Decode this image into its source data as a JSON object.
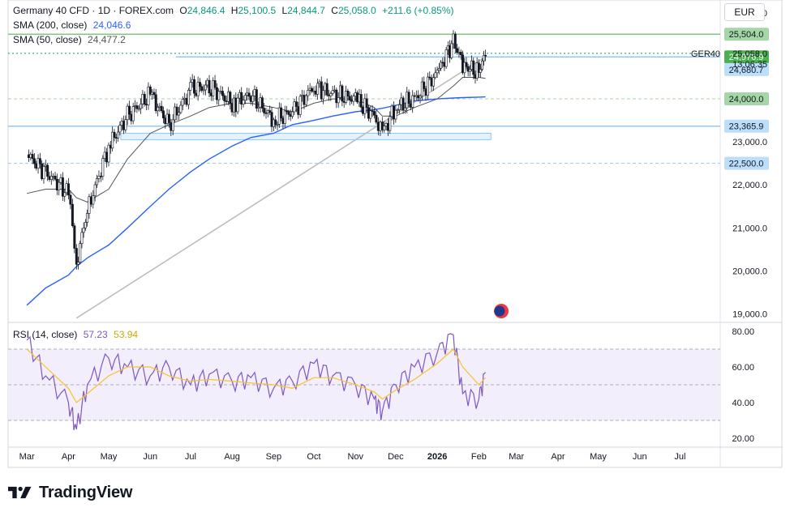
{
  "header": {
    "symbol": "Germany 40 CFD · 1D · FOREX.com",
    "open_label": "O",
    "open": "24,846.4",
    "high_label": "H",
    "high": "25,100.5",
    "low_label": "L",
    "low": "24,844.7",
    "close_label": "C",
    "close": "25,058.0",
    "change": "+211.6 (+0.85%)",
    "sma200_label": "SMA (200, close)",
    "sma200_value": "24,046.6",
    "sma50_label": "SMA (50, close)",
    "sma50_value": "24,477.2",
    "currency": "EUR",
    "up_color": "#089981",
    "down_color": "#f23645"
  },
  "price_axis": {
    "ticks": [
      {
        "value": 26000,
        "label": "26,000.0"
      },
      {
        "value": 23000,
        "label": "23,000.0"
      },
      {
        "value": 22000,
        "label": "22,000.0"
      },
      {
        "value": 21000,
        "label": "21,000.0"
      },
      {
        "value": 20000,
        "label": "20,000.0"
      },
      {
        "value": 19000,
        "label": "19,000.0"
      }
    ],
    "badges": [
      {
        "value": 25504,
        "label": "25,504.0",
        "bg": "#a5d6a7",
        "fg": "#131722"
      },
      {
        "value": 24976.9,
        "label": "24,976.9",
        "bg": "#4caf50",
        "fg": "#ffffff"
      },
      {
        "value": 24680.7,
        "label": "24,680.7",
        "bg": "#bbdefb",
        "fg": "#131722"
      },
      {
        "value": 24000,
        "label": "24,000.0",
        "bg": "#a5d6a7",
        "fg": "#131722"
      },
      {
        "value": 23365.9,
        "label": "23,365.9",
        "bg": "#bbdefb",
        "fg": "#131722"
      },
      {
        "value": 22500,
        "label": "22,500.0",
        "bg": "#bbdefb",
        "fg": "#131722"
      }
    ],
    "last_price": {
      "value": 25058,
      "label": "25,058.0",
      "symbol": "GER40",
      "countdown": "13:06:35"
    }
  },
  "rsi": {
    "label": "RSI (14, close)",
    "value": "57.23",
    "ma_value": "53.94",
    "color": "#7e57c2",
    "ma_color": "#f7c326",
    "band_upper": 70,
    "band_mid": 50,
    "band_lower": 30,
    "ticks": [
      {
        "value": 80,
        "label": "80.00"
      },
      {
        "value": 60,
        "label": "60.00"
      },
      {
        "value": 40,
        "label": "40.00"
      },
      {
        "value": 20,
        "label": "20.00"
      }
    ]
  },
  "time_axis": [
    "Mar",
    "Apr",
    "May",
    "Jun",
    "Jul",
    "Aug",
    "Sep",
    "Oct",
    "Nov",
    "Dec",
    "2026",
    "Feb",
    "Mar",
    "Apr",
    "May",
    "Jun",
    "Jul"
  ],
  "chart_data": {
    "type": "candlestick",
    "title": "Germany 40 CFD · 1D · FOREX.com",
    "x": [
      "2025-03-01",
      "2025-03-15",
      "2025-04-01",
      "2025-04-07",
      "2025-04-15",
      "2025-05-01",
      "2025-05-15",
      "2025-06-01",
      "2025-06-15",
      "2025-07-01",
      "2025-07-15",
      "2025-08-01",
      "2025-08-15",
      "2025-09-01",
      "2025-09-15",
      "2025-10-01",
      "2025-10-15",
      "2025-11-01",
      "2025-11-15",
      "2025-11-21",
      "2025-12-01",
      "2025-12-15",
      "2026-01-01",
      "2026-01-13",
      "2026-01-20",
      "2026-02-01",
      "2026-02-06"
    ],
    "close": [
      22700,
      22300,
      21800,
      20200,
      21400,
      22900,
      23600,
      24100,
      23400,
      24200,
      24300,
      23900,
      24100,
      23500,
      23700,
      24300,
      24100,
      24000,
      23600,
      23200,
      23800,
      24000,
      24600,
      25350,
      24800,
      24600,
      25058
    ],
    "sma50": [
      21800,
      21900,
      21900,
      21700,
      21600,
      21900,
      22600,
      23200,
      23400,
      23600,
      23800,
      23900,
      23900,
      23800,
      23700,
      23900,
      24000,
      24000,
      23800,
      23600,
      23600,
      23800,
      24000,
      24300,
      24500,
      24500,
      24477
    ],
    "sma200": [
      19200,
      19600,
      19900,
      20100,
      20300,
      20600,
      21000,
      21500,
      21900,
      22300,
      22600,
      22900,
      23100,
      23200,
      23400,
      23500,
      23600,
      23700,
      23750,
      23780,
      23850,
      23950,
      24000,
      24020,
      24030,
      24040,
      24047
    ],
    "rsi": [
      75,
      55,
      40,
      25,
      50,
      65,
      60,
      55,
      60,
      50,
      56,
      52,
      54,
      48,
      52,
      62,
      55,
      50,
      42,
      35,
      50,
      60,
      68,
      78,
      45,
      42,
      57
    ],
    "rsi_ma": [
      70,
      60,
      48,
      40,
      45,
      55,
      60,
      60,
      55,
      52,
      53,
      52,
      51,
      50,
      48,
      54,
      54,
      50,
      46,
      42,
      47,
      53,
      62,
      70,
      60,
      50,
      54
    ],
    "horizontal_levels": [
      25504,
      24976.9,
      24680.7,
      24000,
      23365.9,
      22500
    ],
    "support_zone": [
      23050,
      23200
    ],
    "trendline": [
      [
        "2025-04-07",
        18900
      ],
      [
        "2026-02-06",
        24980
      ]
    ],
    "ylim": [
      18800,
      26300
    ],
    "rsi_ylim": [
      15,
      85
    ]
  }
}
